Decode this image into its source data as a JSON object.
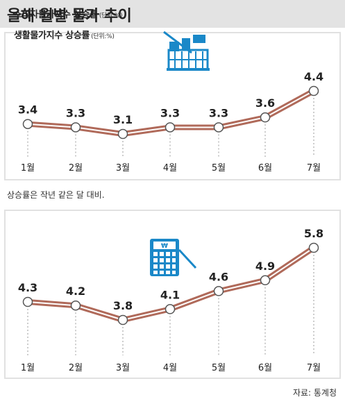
{
  "header": {
    "title": "올해 월별 물가 추이"
  },
  "note": "상승률은 작년 같은 달 대비.",
  "source": "자료: 통계청",
  "chart_data": [
    {
      "type": "line",
      "title": "소비자물가지수 상승률",
      "unit": "(단위:%)",
      "categories": [
        "1월",
        "2월",
        "3월",
        "4월",
        "5월",
        "6월",
        "7월"
      ],
      "series": [
        {
          "values": [
            3.4,
            3.3,
            3.1,
            3.3,
            3.3,
            3.6,
            4.4
          ]
        }
      ],
      "value_labels": [
        "3.4",
        "3.3",
        "3.1",
        "3.3",
        "3.3",
        "3.6",
        "4.4"
      ],
      "grid": false,
      "icon": "shopping-basket-icon",
      "line_color": "#b06a5a"
    },
    {
      "type": "line",
      "title": "생활물가지수 상승률",
      "unit": "(단위:%)",
      "categories": [
        "1월",
        "2월",
        "3월",
        "4월",
        "5월",
        "6월",
        "7월"
      ],
      "series": [
        {
          "values": [
            4.3,
            4.2,
            3.8,
            4.1,
            4.6,
            4.9,
            5.8
          ]
        }
      ],
      "value_labels": [
        "4.3",
        "4.2",
        "3.8",
        "4.1",
        "4.6",
        "4.9",
        "5.8"
      ],
      "grid": false,
      "icon": "calculator-icon",
      "line_color": "#b06a5a"
    }
  ]
}
